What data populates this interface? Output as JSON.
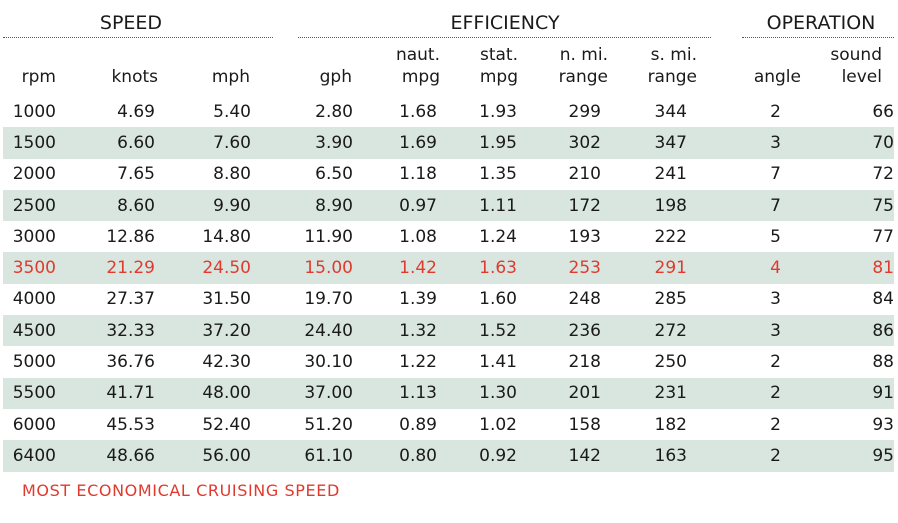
{
  "groups": {
    "speed": "SPEED",
    "efficiency": "EFFICIENCY",
    "operation": "OPERATION"
  },
  "columns": [
    {
      "key": "rpm",
      "line1": "",
      "line2": "rpm"
    },
    {
      "key": "knots",
      "line1": "",
      "line2": "knots"
    },
    {
      "key": "mph",
      "line1": "",
      "line2": "mph"
    },
    {
      "key": "gph",
      "line1": "",
      "line2": "gph"
    },
    {
      "key": "naut_mpg",
      "line1": "naut.",
      "line2": "mpg"
    },
    {
      "key": "stat_mpg",
      "line1": "stat.",
      "line2": "mpg"
    },
    {
      "key": "n_mi_range",
      "line1": "n. mi.",
      "line2": "range"
    },
    {
      "key": "s_mi_range",
      "line1": "s. mi.",
      "line2": "range"
    },
    {
      "key": "angle",
      "line1": "",
      "line2": "angle"
    },
    {
      "key": "sound_level",
      "line1": "sound",
      "line2": "level"
    }
  ],
  "rows": [
    [
      "1000",
      "4.69",
      "5.40",
      "2.80",
      "1.68",
      "1.93",
      "299",
      "344",
      "2",
      "66"
    ],
    [
      "1500",
      "6.60",
      "7.60",
      "3.90",
      "1.69",
      "1.95",
      "302",
      "347",
      "3",
      "70"
    ],
    [
      "2000",
      "7.65",
      "8.80",
      "6.50",
      "1.18",
      "1.35",
      "210",
      "241",
      "7",
      "72"
    ],
    [
      "2500",
      "8.60",
      "9.90",
      "8.90",
      "0.97",
      "1.11",
      "172",
      "198",
      "7",
      "75"
    ],
    [
      "3000",
      "12.86",
      "14.80",
      "11.90",
      "1.08",
      "1.24",
      "193",
      "222",
      "5",
      "77"
    ],
    [
      "3500",
      "21.29",
      "24.50",
      "15.00",
      "1.42",
      "1.63",
      "253",
      "291",
      "4",
      "81"
    ],
    [
      "4000",
      "27.37",
      "31.50",
      "19.70",
      "1.39",
      "1.60",
      "248",
      "285",
      "3",
      "84"
    ],
    [
      "4500",
      "32.33",
      "37.20",
      "24.40",
      "1.32",
      "1.52",
      "236",
      "272",
      "3",
      "86"
    ],
    [
      "5000",
      "36.76",
      "42.30",
      "30.10",
      "1.22",
      "1.41",
      "218",
      "250",
      "2",
      "88"
    ],
    [
      "5500",
      "41.71",
      "48.00",
      "37.00",
      "1.13",
      "1.30",
      "201",
      "231",
      "2",
      "91"
    ],
    [
      "6000",
      "45.53",
      "52.40",
      "51.20",
      "0.89",
      "1.02",
      "158",
      "182",
      "2",
      "93"
    ],
    [
      "6400",
      "48.66",
      "56.00",
      "61.10",
      "0.80",
      "0.92",
      "142",
      "163",
      "2",
      "95"
    ]
  ],
  "highlight_row": "3500",
  "highlight_color": "#e03a2e",
  "shade_color": "#d9e6df",
  "footnote": "MOST ECONOMICAL CRUISING SPEED"
}
